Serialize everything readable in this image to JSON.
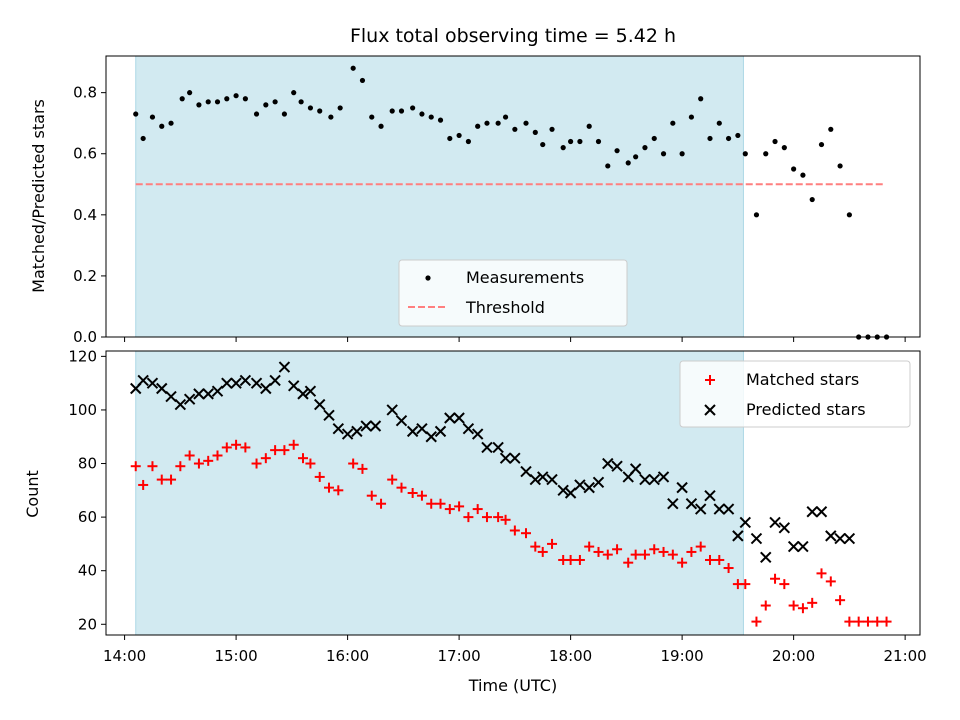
{
  "title": "Flux total observing time = 5.42 h",
  "colors": {
    "shade": "#add8e6",
    "measurement": "#000000",
    "threshold": "#ff7f7f",
    "matched": "#ff0000",
    "predicted": "#000000"
  },
  "chart_data": [
    {
      "type": "scatter",
      "ylabel": "Matched/Predicted stars",
      "xlabel": "",
      "ylim": [
        0,
        0.92
      ],
      "yticks": [
        0.0,
        0.2,
        0.4,
        0.6,
        0.8
      ],
      "ytick_labels": [
        "0.0",
        "0.2",
        "0.4",
        "0.6",
        "0.8"
      ],
      "shaded_span": [
        "14:06",
        "19:33"
      ],
      "legend": {
        "position": "lower center",
        "entries": [
          "Measurements",
          "Threshold"
        ]
      },
      "threshold": {
        "name": "Threshold",
        "y": 0.5,
        "x_range": [
          "14:06",
          "20:48"
        ]
      },
      "series": [
        {
          "name": "Measurements",
          "points": [
            [
              "14:06",
              0.73
            ],
            [
              "14:10",
              0.65
            ],
            [
              "14:15",
              0.72
            ],
            [
              "14:20",
              0.69
            ],
            [
              "14:25",
              0.7
            ],
            [
              "14:31",
              0.78
            ],
            [
              "14:35",
              0.8
            ],
            [
              "14:40",
              0.76
            ],
            [
              "14:45",
              0.77
            ],
            [
              "14:50",
              0.77
            ],
            [
              "14:55",
              0.78
            ],
            [
              "15:00",
              0.79
            ],
            [
              "15:05",
              0.78
            ],
            [
              "15:11",
              0.73
            ],
            [
              "15:16",
              0.76
            ],
            [
              "15:21",
              0.77
            ],
            [
              "15:26",
              0.73
            ],
            [
              "15:31",
              0.8
            ],
            [
              "15:35",
              0.77
            ],
            [
              "15:40",
              0.75
            ],
            [
              "15:45",
              0.74
            ],
            [
              "15:51",
              0.72
            ],
            [
              "15:56",
              0.75
            ],
            [
              "16:03",
              0.88
            ],
            [
              "16:08",
              0.84
            ],
            [
              "16:13",
              0.72
            ],
            [
              "16:18",
              0.69
            ],
            [
              "16:24",
              0.74
            ],
            [
              "16:29",
              0.74
            ],
            [
              "16:35",
              0.75
            ],
            [
              "16:40",
              0.73
            ],
            [
              "16:45",
              0.72
            ],
            [
              "16:50",
              0.71
            ],
            [
              "16:55",
              0.65
            ],
            [
              "17:00",
              0.66
            ],
            [
              "17:05",
              0.64
            ],
            [
              "17:10",
              0.69
            ],
            [
              "17:15",
              0.7
            ],
            [
              "17:21",
              0.7
            ],
            [
              "17:25",
              0.72
            ],
            [
              "17:30",
              0.68
            ],
            [
              "17:36",
              0.7
            ],
            [
              "17:41",
              0.67
            ],
            [
              "17:45",
              0.63
            ],
            [
              "17:50",
              0.68
            ],
            [
              "17:56",
              0.62
            ],
            [
              "18:00",
              0.64
            ],
            [
              "18:05",
              0.64
            ],
            [
              "18:10",
              0.69
            ],
            [
              "18:15",
              0.64
            ],
            [
              "18:20",
              0.56
            ],
            [
              "18:25",
              0.61
            ],
            [
              "18:31",
              0.57
            ],
            [
              "18:35",
              0.59
            ],
            [
              "18:40",
              0.62
            ],
            [
              "18:45",
              0.65
            ],
            [
              "18:50",
              0.6
            ],
            [
              "18:55",
              0.7
            ],
            [
              "19:00",
              0.6
            ],
            [
              "19:05",
              0.72
            ],
            [
              "19:10",
              0.78
            ],
            [
              "19:15",
              0.65
            ],
            [
              "19:20",
              0.7
            ],
            [
              "19:25",
              0.65
            ],
            [
              "19:30",
              0.66
            ],
            [
              "19:34",
              0.6
            ],
            [
              "19:40",
              0.4
            ],
            [
              "19:45",
              0.6
            ],
            [
              "19:50",
              0.64
            ],
            [
              "19:55",
              0.62
            ],
            [
              "20:00",
              0.55
            ],
            [
              "20:05",
              0.53
            ],
            [
              "20:10",
              0.45
            ],
            [
              "20:15",
              0.63
            ],
            [
              "20:20",
              0.68
            ],
            [
              "20:25",
              0.56
            ],
            [
              "20:30",
              0.4
            ],
            [
              "20:35",
              0.0
            ],
            [
              "20:40",
              0.0
            ],
            [
              "20:45",
              0.0
            ],
            [
              "20:50",
              0.0
            ]
          ]
        }
      ]
    },
    {
      "type": "scatter",
      "ylabel": "Count",
      "xlabel": "Time (UTC)",
      "ylim": [
        16,
        122
      ],
      "yticks": [
        20,
        40,
        60,
        80,
        100,
        120
      ],
      "ytick_labels": [
        "20",
        "40",
        "60",
        "80",
        "100",
        "120"
      ],
      "xlim": [
        "13:50",
        "21:08"
      ],
      "xticks": [
        "14:00",
        "15:00",
        "16:00",
        "17:00",
        "18:00",
        "19:00",
        "20:00",
        "21:00"
      ],
      "xtick_labels": [
        "14:00",
        "15:00",
        "16:00",
        "17:00",
        "18:00",
        "19:00",
        "20:00",
        "21:00"
      ],
      "shaded_span": [
        "14:06",
        "19:33"
      ],
      "legend": {
        "position": "upper right",
        "entries": [
          "Matched stars",
          "Predicted stars"
        ]
      },
      "series": [
        {
          "name": "Matched stars",
          "marker": "plus",
          "points": [
            [
              "14:06",
              79
            ],
            [
              "14:10",
              72
            ],
            [
              "14:15",
              79
            ],
            [
              "14:20",
              74
            ],
            [
              "14:25",
              74
            ],
            [
              "14:30",
              79
            ],
            [
              "14:35",
              83
            ],
            [
              "14:40",
              80
            ],
            [
              "14:45",
              81
            ],
            [
              "14:50",
              83
            ],
            [
              "14:55",
              86
            ],
            [
              "15:00",
              87
            ],
            [
              "15:05",
              86
            ],
            [
              "15:11",
              80
            ],
            [
              "15:16",
              82
            ],
            [
              "15:21",
              85
            ],
            [
              "15:26",
              85
            ],
            [
              "15:31",
              87
            ],
            [
              "15:36",
              82
            ],
            [
              "15:40",
              80
            ],
            [
              "15:45",
              75
            ],
            [
              "15:50",
              71
            ],
            [
              "15:55",
              70
            ],
            [
              "16:03",
              80
            ],
            [
              "16:08",
              78
            ],
            [
              "16:13",
              68
            ],
            [
              "16:18",
              65
            ],
            [
              "16:24",
              74
            ],
            [
              "16:29",
              71
            ],
            [
              "16:35",
              69
            ],
            [
              "16:40",
              68
            ],
            [
              "16:45",
              65
            ],
            [
              "16:50",
              65
            ],
            [
              "16:55",
              63
            ],
            [
              "17:00",
              64
            ],
            [
              "17:05",
              60
            ],
            [
              "17:10",
              63
            ],
            [
              "17:15",
              60
            ],
            [
              "17:21",
              60
            ],
            [
              "17:25",
              59
            ],
            [
              "17:30",
              55
            ],
            [
              "17:36",
              54
            ],
            [
              "17:41",
              49
            ],
            [
              "17:45",
              47
            ],
            [
              "17:50",
              50
            ],
            [
              "17:56",
              44
            ],
            [
              "18:00",
              44
            ],
            [
              "18:05",
              44
            ],
            [
              "18:10",
              49
            ],
            [
              "18:15",
              47
            ],
            [
              "18:20",
              46
            ],
            [
              "18:25",
              48
            ],
            [
              "18:31",
              43
            ],
            [
              "18:35",
              46
            ],
            [
              "18:40",
              46
            ],
            [
              "18:45",
              48
            ],
            [
              "18:50",
              47
            ],
            [
              "18:55",
              46
            ],
            [
              "19:00",
              43
            ],
            [
              "19:05",
              47
            ],
            [
              "19:10",
              49
            ],
            [
              "19:15",
              44
            ],
            [
              "19:20",
              44
            ],
            [
              "19:25",
              41
            ],
            [
              "19:30",
              35
            ],
            [
              "19:34",
              35
            ],
            [
              "19:40",
              21
            ],
            [
              "19:45",
              27
            ],
            [
              "19:50",
              37
            ],
            [
              "19:55",
              35
            ],
            [
              "20:00",
              27
            ],
            [
              "20:05",
              26
            ],
            [
              "20:10",
              28
            ],
            [
              "20:15",
              39
            ],
            [
              "20:20",
              36
            ],
            [
              "20:25",
              29
            ],
            [
              "20:30",
              21
            ],
            [
              "20:35",
              21
            ],
            [
              "20:40",
              21
            ],
            [
              "20:45",
              21
            ],
            [
              "20:50",
              21
            ]
          ]
        },
        {
          "name": "Predicted stars",
          "marker": "x",
          "points": [
            [
              "14:06",
              108
            ],
            [
              "14:10",
              111
            ],
            [
              "14:15",
              110
            ],
            [
              "14:20",
              108
            ],
            [
              "14:25",
              105
            ],
            [
              "14:30",
              102
            ],
            [
              "14:35",
              104
            ],
            [
              "14:40",
              106
            ],
            [
              "14:45",
              106
            ],
            [
              "14:50",
              107
            ],
            [
              "14:55",
              110
            ],
            [
              "15:00",
              110
            ],
            [
              "15:05",
              111
            ],
            [
              "15:11",
              110
            ],
            [
              "15:16",
              108
            ],
            [
              "15:21",
              111
            ],
            [
              "15:26",
              116
            ],
            [
              "15:31",
              109
            ],
            [
              "15:36",
              106
            ],
            [
              "15:40",
              107
            ],
            [
              "15:45",
              102
            ],
            [
              "15:50",
              98
            ],
            [
              "15:55",
              93
            ],
            [
              "16:00",
              91
            ],
            [
              "16:05",
              92
            ],
            [
              "16:10",
              94
            ],
            [
              "16:15",
              94
            ],
            [
              "16:24",
              100
            ],
            [
              "16:29",
              96
            ],
            [
              "16:35",
              92
            ],
            [
              "16:40",
              93
            ],
            [
              "16:45",
              90
            ],
            [
              "16:50",
              92
            ],
            [
              "16:55",
              97
            ],
            [
              "17:00",
              97
            ],
            [
              "17:05",
              93
            ],
            [
              "17:10",
              91
            ],
            [
              "17:15",
              86
            ],
            [
              "17:21",
              86
            ],
            [
              "17:25",
              82
            ],
            [
              "17:30",
              82
            ],
            [
              "17:36",
              77
            ],
            [
              "17:41",
              74
            ],
            [
              "17:45",
              75
            ],
            [
              "17:50",
              74
            ],
            [
              "17:56",
              70
            ],
            [
              "18:00",
              69
            ],
            [
              "18:05",
              72
            ],
            [
              "18:10",
              71
            ],
            [
              "18:15",
              73
            ],
            [
              "18:20",
              80
            ],
            [
              "18:25",
              79
            ],
            [
              "18:31",
              75
            ],
            [
              "18:35",
              78
            ],
            [
              "18:40",
              74
            ],
            [
              "18:45",
              74
            ],
            [
              "18:50",
              75
            ],
            [
              "18:55",
              65
            ],
            [
              "19:00",
              71
            ],
            [
              "19:05",
              65
            ],
            [
              "19:10",
              63
            ],
            [
              "19:15",
              68
            ],
            [
              "19:20",
              63
            ],
            [
              "19:25",
              63
            ],
            [
              "19:30",
              53
            ],
            [
              "19:34",
              58
            ],
            [
              "19:40",
              52
            ],
            [
              "19:45",
              45
            ],
            [
              "19:50",
              58
            ],
            [
              "19:55",
              56
            ],
            [
              "20:00",
              49
            ],
            [
              "20:05",
              49
            ],
            [
              "20:10",
              62
            ],
            [
              "20:15",
              62
            ],
            [
              "20:20",
              53
            ],
            [
              "20:25",
              52
            ],
            [
              "20:30",
              52
            ]
          ]
        }
      ]
    }
  ]
}
